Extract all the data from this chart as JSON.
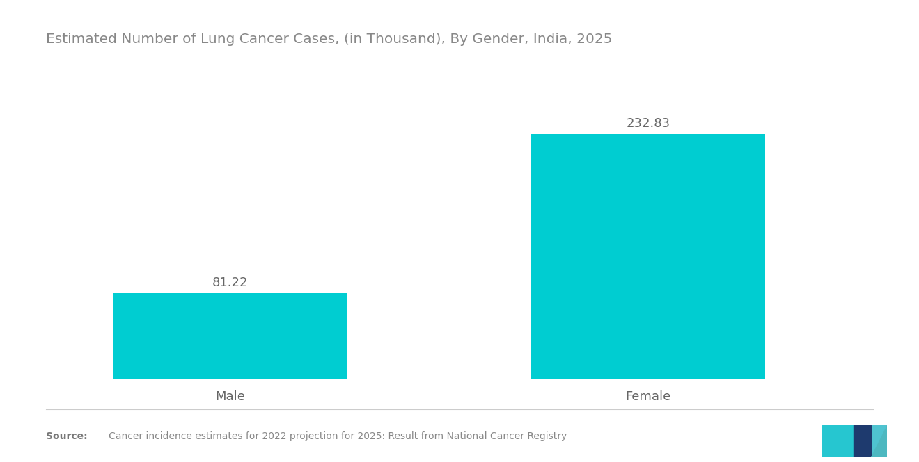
{
  "title": "Estimated Number of Lung Cancer Cases, (in Thousand), By Gender, India, 2025",
  "categories": [
    "Male",
    "Female"
  ],
  "values": [
    81.22,
    232.83
  ],
  "bar_color": "#00CDD1",
  "background_color": "#ffffff",
  "title_fontsize": 14.5,
  "label_fontsize": 13,
  "value_fontsize": 13,
  "source_bold": "Source:",
  "source_rest": "   Cancer incidence estimates for 2022 projection for 2025: Result from National Cancer Registry",
  "ylim": [
    0,
    290
  ],
  "bar_width": 0.28,
  "x_positions": [
    0.22,
    0.72
  ]
}
